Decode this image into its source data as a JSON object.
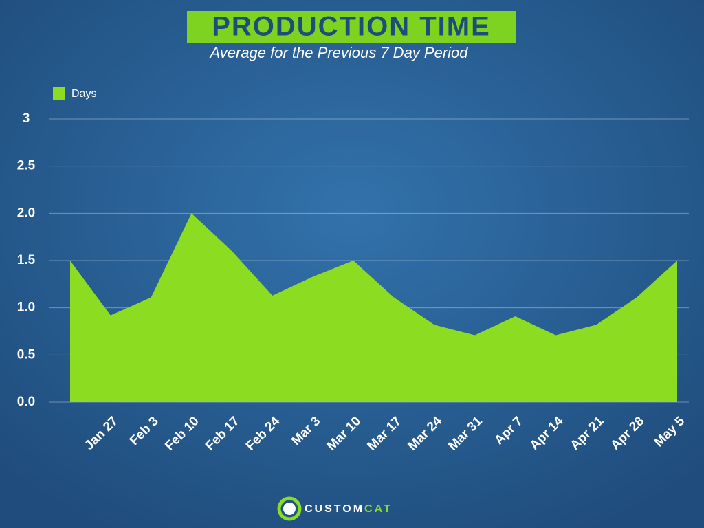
{
  "chart_data": {
    "type": "area",
    "title": "PRODUCTION TIME",
    "subtitle": "Average for the Previous 7 Day Period",
    "categories": [
      null,
      "Jan 27",
      "Feb 3",
      "Feb 10",
      "Feb 17",
      "Feb 24",
      "Mar 3",
      "Mar 10",
      "Mar 17",
      "Mar 24",
      "Mar 31",
      "Apr 7",
      "Apr 14",
      "Apr 21",
      "Apr 28",
      "May 5"
    ],
    "series": [
      {
        "name": "Days",
        "color": "#8cdc22",
        "values": [
          1.5,
          0.92,
          1.11,
          2.0,
          1.6,
          1.13,
          1.33,
          1.5,
          1.11,
          0.82,
          0.71,
          0.91,
          0.71,
          0.82,
          1.11,
          1.5
        ]
      }
    ],
    "ylim": [
      0,
      3
    ],
    "yticks": [
      {
        "value": 0,
        "label": "0.0"
      },
      0.5,
      {
        "value": 1,
        "label": "1.0"
      },
      1.5,
      {
        "value": 2,
        "label": "2.0"
      },
      2.5,
      3
    ],
    "grid": true,
    "legend": "top-left",
    "brand": [
      "CUSTOM",
      "CAT"
    ]
  }
}
